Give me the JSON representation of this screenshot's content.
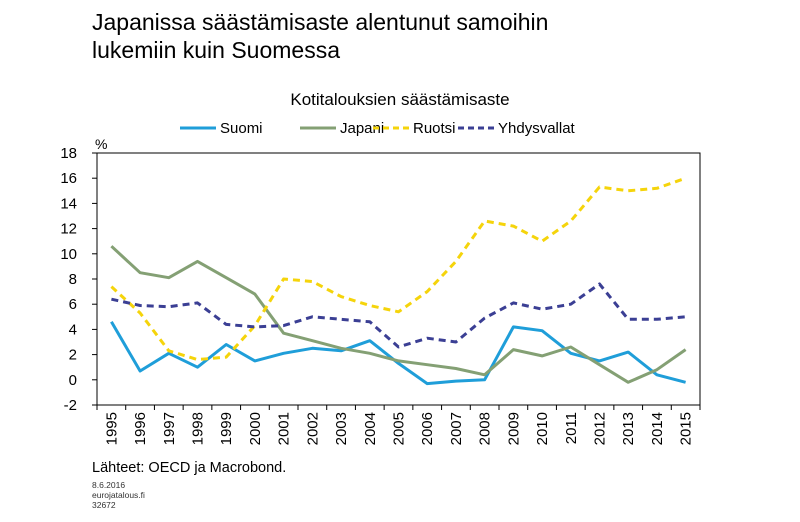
{
  "headline": {
    "line1": "Japanissa säästämisaste alentunut samoihin",
    "line2": "lukemiin kuin Suomessa"
  },
  "footer": {
    "source": "Lähteet: OECD ja Macrobond.",
    "date": "8.6.2016",
    "site": "eurojatalous.fi",
    "code": "32672"
  },
  "chart_data": {
    "type": "line",
    "title": "Kotitalouksien säästämisaste",
    "ylabel": "%",
    "xlabel": "",
    "ylim": [
      -2,
      18
    ],
    "yticks": [
      -2,
      0,
      2,
      4,
      6,
      8,
      10,
      12,
      14,
      16,
      18
    ],
    "grid": false,
    "legend": "top",
    "x": [
      "1995",
      "1996",
      "1997",
      "1998",
      "1999",
      "2000",
      "2001",
      "2002",
      "2003",
      "2004",
      "2005",
      "2006",
      "2007",
      "2008",
      "2009",
      "2010",
      "2011",
      "2012",
      "2013",
      "2014",
      "2015"
    ],
    "series": [
      {
        "name": "Suomi",
        "color": "#1f9ed9",
        "style": "solid",
        "values": [
          4.6,
          0.7,
          2.1,
          1.0,
          2.8,
          1.5,
          2.1,
          2.5,
          2.3,
          3.1,
          1.3,
          -0.3,
          -0.1,
          0.0,
          4.2,
          3.9,
          2.1,
          1.5,
          2.2,
          0.4,
          -0.2
        ]
      },
      {
        "name": "Japani",
        "color": "#84a074",
        "style": "solid",
        "values": [
          10.6,
          8.5,
          8.1,
          9.4,
          8.1,
          6.8,
          3.7,
          3.1,
          2.5,
          2.1,
          1.5,
          1.2,
          0.9,
          0.4,
          2.4,
          1.9,
          2.6,
          1.2,
          -0.2,
          0.8,
          2.4
        ]
      },
      {
        "name": "Ruotsi",
        "color": "#f5d40b",
        "style": "dashed",
        "values": [
          7.4,
          5.3,
          2.3,
          1.6,
          1.8,
          4.3,
          8.0,
          7.8,
          6.6,
          5.9,
          5.4,
          7.0,
          9.4,
          12.6,
          12.2,
          11.0,
          12.6,
          15.3,
          15.0,
          15.2,
          16.0
        ]
      },
      {
        "name": "Yhdysvallat",
        "color": "#3b3f94",
        "style": "dashed",
        "values": [
          6.4,
          5.9,
          5.8,
          6.1,
          4.4,
          4.2,
          4.3,
          5.0,
          4.8,
          4.6,
          2.6,
          3.3,
          3.0,
          4.9,
          6.1,
          5.6,
          6.0,
          7.6,
          4.8,
          4.8,
          5.0
        ]
      }
    ]
  }
}
